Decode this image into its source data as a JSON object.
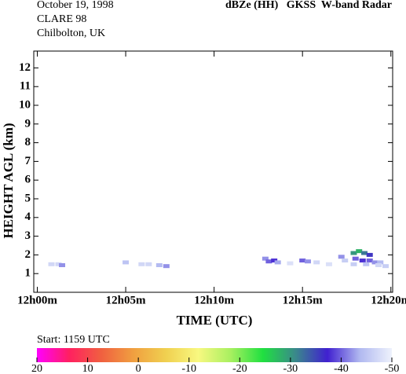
{
  "chart_data": {
    "type": "heatmap",
    "header": [
      "October 19, 1998",
      "CLARE 98",
      "Chilbolton, UK"
    ],
    "title": "dBZe (HH)   GKSS  W-band Radar",
    "x_label": "TIME (UTC)",
    "y_label": "HEIGHT AGL (km)",
    "xlim": [
      -0.2,
      20.1
    ],
    "ylim": [
      0,
      12.9
    ],
    "xticks": [
      {
        "value": 0,
        "label": "12h00m"
      },
      {
        "value": 5,
        "label": "12h05m"
      },
      {
        "value": 10,
        "label": "12h10m"
      },
      {
        "value": 15,
        "label": "12h15m"
      },
      {
        "value": 20,
        "label": "12h20m"
      }
    ],
    "yticks": [
      1,
      2,
      3,
      4,
      5,
      6,
      7,
      8,
      9,
      10,
      11,
      12
    ],
    "cells": {
      "x": [
        0.8,
        1.2,
        1.4,
        5.0,
        5.9,
        6.3,
        6.9,
        7.3,
        12.9,
        13.1,
        13.4,
        13.6,
        14.3,
        15.0,
        15.3,
        15.8,
        16.5,
        17.2,
        17.4,
        17.9,
        18.2,
        18.5,
        18.8,
        18.0,
        18.4,
        18.8,
        19.1,
        19.4,
        17.9,
        18.6,
        19.3,
        19.7
      ],
      "y": [
        1.5,
        1.5,
        1.45,
        1.6,
        1.5,
        1.5,
        1.45,
        1.4,
        1.8,
        1.65,
        1.7,
        1.6,
        1.55,
        1.7,
        1.65,
        1.6,
        1.5,
        1.9,
        1.7,
        2.1,
        2.2,
        2.1,
        2.0,
        1.8,
        1.7,
        1.7,
        1.6,
        1.6,
        1.5,
        1.5,
        1.45,
        1.4
      ],
      "values": [
        -47,
        -47,
        -42,
        -45,
        -47,
        -47,
        -44,
        -42,
        -42,
        -40,
        -38,
        -43,
        -48,
        -40,
        -42,
        -47,
        -48,
        -42,
        -46,
        -30,
        -28,
        -32,
        -36,
        -40,
        -38,
        -40,
        -42,
        -44,
        -46,
        -45,
        -47,
        -46
      ]
    },
    "colorbar": {
      "label": "Start: 1159 UTC",
      "range": [
        20,
        -50
      ],
      "ticks": [
        20,
        10,
        0,
        -10,
        -20,
        -30,
        -40,
        -50
      ],
      "colors": [
        "#ff00ff",
        "#ff2060",
        "#f06040",
        "#f0a040",
        "#f0d050",
        "#f8f880",
        "#a8f060",
        "#20e040",
        "#3a8a8a",
        "#4020d0",
        "#b0b8f0",
        "#eef2fc"
      ]
    }
  }
}
